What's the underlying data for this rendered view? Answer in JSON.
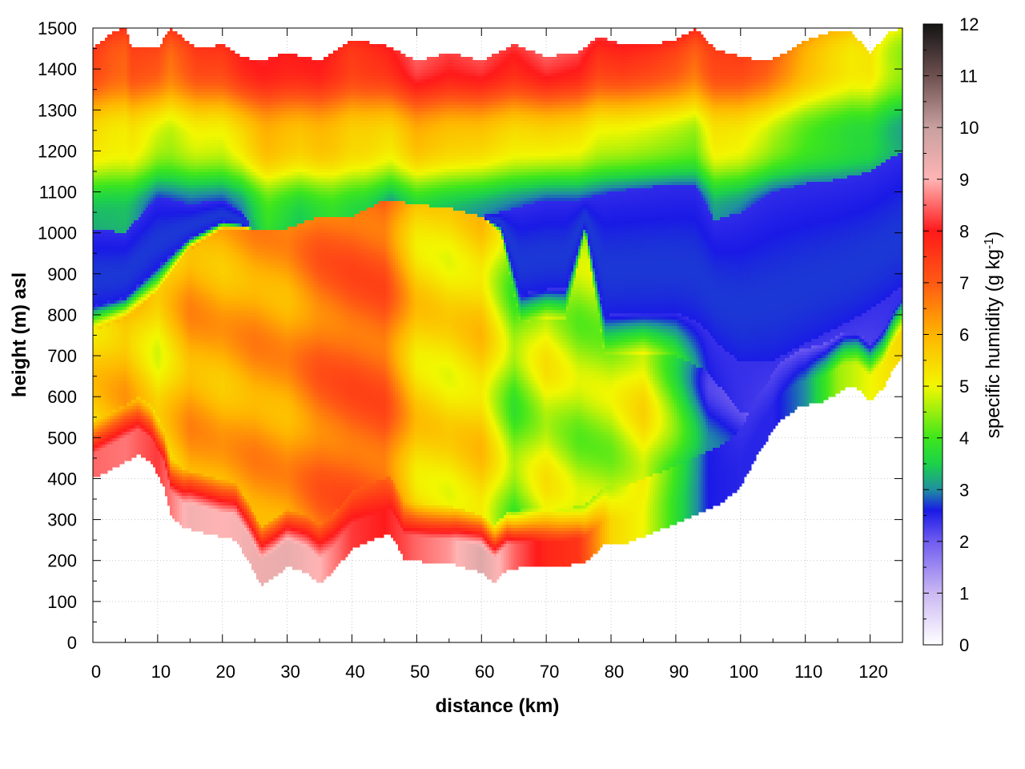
{
  "chart_data": {
    "type": "heatmap",
    "title": "",
    "xlabel": "distance (km)",
    "ylabel": "height (m) asl",
    "xlim": [
      0,
      125
    ],
    "ylim": [
      0,
      1500
    ],
    "xticks": [
      "0",
      "10",
      "20",
      "30",
      "40",
      "50",
      "60",
      "70",
      "80",
      "90",
      "100",
      "110",
      "120"
    ],
    "yticks": [
      "0",
      "100",
      "200",
      "300",
      "400",
      "500",
      "600",
      "700",
      "800",
      "900",
      "1000",
      "1100",
      "1200",
      "1300",
      "1400",
      "1500"
    ],
    "grid": true,
    "colorbar": {
      "label": "specific humidity (g kg",
      "label_superscript": "-1",
      "label_suffix": ")",
      "range": [
        0,
        12
      ],
      "ticks": [
        "0",
        "1",
        "2",
        "3",
        "4",
        "5",
        "6",
        "7",
        "8",
        "9",
        "10",
        "11",
        "12"
      ],
      "stops": [
        {
          "q": 0,
          "color": "#ffffff"
        },
        {
          "q": 1,
          "color": "#cbb8f2"
        },
        {
          "q": 2,
          "color": "#6f5cf0"
        },
        {
          "q": 2.6,
          "color": "#1a1ae6"
        },
        {
          "q": 3,
          "color": "#1f8fa0"
        },
        {
          "q": 3.5,
          "color": "#1cd24a"
        },
        {
          "q": 4,
          "color": "#3ee61c"
        },
        {
          "q": 5,
          "color": "#f2f700"
        },
        {
          "q": 6,
          "color": "#ffb400"
        },
        {
          "q": 7,
          "color": "#ff5a14"
        },
        {
          "q": 8,
          "color": "#ff1a1a"
        },
        {
          "q": 9,
          "color": "#ffb4b4"
        },
        {
          "q": 10,
          "color": "#c8a0a0"
        },
        {
          "q": 11,
          "color": "#6e5050"
        },
        {
          "q": 12,
          "color": "#141414"
        }
      ]
    },
    "ground_height_m": [
      {
        "x": 0,
        "h": 400
      },
      {
        "x": 5,
        "h": 440
      },
      {
        "x": 7,
        "h": 460
      },
      {
        "x": 9,
        "h": 440
      },
      {
        "x": 11,
        "h": 380
      },
      {
        "x": 12,
        "h": 310
      },
      {
        "x": 14,
        "h": 280
      },
      {
        "x": 18,
        "h": 265
      },
      {
        "x": 22,
        "h": 250
      },
      {
        "x": 24,
        "h": 200
      },
      {
        "x": 26,
        "h": 140
      },
      {
        "x": 28,
        "h": 160
      },
      {
        "x": 30,
        "h": 185
      },
      {
        "x": 33,
        "h": 170
      },
      {
        "x": 35,
        "h": 145
      },
      {
        "x": 37,
        "h": 170
      },
      {
        "x": 40,
        "h": 230
      },
      {
        "x": 43,
        "h": 250
      },
      {
        "x": 46,
        "h": 265
      },
      {
        "x": 48,
        "h": 205
      },
      {
        "x": 52,
        "h": 195
      },
      {
        "x": 56,
        "h": 190
      },
      {
        "x": 60,
        "h": 170
      },
      {
        "x": 62,
        "h": 145
      },
      {
        "x": 64,
        "h": 180
      },
      {
        "x": 68,
        "h": 185
      },
      {
        "x": 72,
        "h": 185
      },
      {
        "x": 76,
        "h": 195
      },
      {
        "x": 79,
        "h": 240
      },
      {
        "x": 82,
        "h": 240
      },
      {
        "x": 86,
        "h": 265
      },
      {
        "x": 90,
        "h": 290
      },
      {
        "x": 94,
        "h": 320
      },
      {
        "x": 97,
        "h": 340
      },
      {
        "x": 100,
        "h": 380
      },
      {
        "x": 103,
        "h": 470
      },
      {
        "x": 106,
        "h": 540
      },
      {
        "x": 109,
        "h": 575
      },
      {
        "x": 113,
        "h": 590
      },
      {
        "x": 116,
        "h": 620
      },
      {
        "x": 118,
        "h": 620
      },
      {
        "x": 120,
        "h": 590
      },
      {
        "x": 122,
        "h": 620
      },
      {
        "x": 124,
        "h": 680
      },
      {
        "x": 125,
        "h": 700
      }
    ],
    "top_height_m": [
      {
        "x": 0,
        "h": 1450
      },
      {
        "x": 3,
        "h": 1490
      },
      {
        "x": 5,
        "h": 1500
      },
      {
        "x": 6,
        "h": 1450
      },
      {
        "x": 10,
        "h": 1450
      },
      {
        "x": 12,
        "h": 1500
      },
      {
        "x": 16,
        "h": 1450
      },
      {
        "x": 20,
        "h": 1460
      },
      {
        "x": 23,
        "h": 1430
      },
      {
        "x": 26,
        "h": 1420
      },
      {
        "x": 30,
        "h": 1440
      },
      {
        "x": 35,
        "h": 1420
      },
      {
        "x": 40,
        "h": 1470
      },
      {
        "x": 45,
        "h": 1460
      },
      {
        "x": 50,
        "h": 1420
      },
      {
        "x": 55,
        "h": 1440
      },
      {
        "x": 60,
        "h": 1420
      },
      {
        "x": 65,
        "h": 1460
      },
      {
        "x": 70,
        "h": 1430
      },
      {
        "x": 75,
        "h": 1440
      },
      {
        "x": 78,
        "h": 1480
      },
      {
        "x": 82,
        "h": 1460
      },
      {
        "x": 86,
        "h": 1460
      },
      {
        "x": 90,
        "h": 1470
      },
      {
        "x": 93,
        "h": 1500
      },
      {
        "x": 96,
        "h": 1450
      },
      {
        "x": 100,
        "h": 1430
      },
      {
        "x": 104,
        "h": 1420
      },
      {
        "x": 107,
        "h": 1440
      },
      {
        "x": 110,
        "h": 1470
      },
      {
        "x": 114,
        "h": 1490
      },
      {
        "x": 117,
        "h": 1490
      },
      {
        "x": 120,
        "h": 1440
      },
      {
        "x": 123,
        "h": 1490
      },
      {
        "x": 125,
        "h": 1500
      }
    ],
    "inversion_height_m": [
      {
        "x": 0,
        "h": 1010
      },
      {
        "x": 5,
        "h": 1000
      },
      {
        "x": 10,
        "h": 1090
      },
      {
        "x": 15,
        "h": 1070
      },
      {
        "x": 20,
        "h": 1080
      },
      {
        "x": 23,
        "h": 1050
      },
      {
        "x": 27,
        "h": 950
      },
      {
        "x": 32,
        "h": 1000
      },
      {
        "x": 37,
        "h": 960
      },
      {
        "x": 42,
        "h": 990
      },
      {
        "x": 46,
        "h": 1050
      },
      {
        "x": 50,
        "h": 1000
      },
      {
        "x": 55,
        "h": 1020
      },
      {
        "x": 60,
        "h": 1040
      },
      {
        "x": 65,
        "h": 1060
      },
      {
        "x": 70,
        "h": 1080
      },
      {
        "x": 75,
        "h": 1080
      },
      {
        "x": 80,
        "h": 1100
      },
      {
        "x": 85,
        "h": 1110
      },
      {
        "x": 90,
        "h": 1120
      },
      {
        "x": 93,
        "h": 1120
      },
      {
        "x": 96,
        "h": 1030
      },
      {
        "x": 100,
        "h": 1050
      },
      {
        "x": 105,
        "h": 1100
      },
      {
        "x": 110,
        "h": 1120
      },
      {
        "x": 115,
        "h": 1130
      },
      {
        "x": 120,
        "h": 1150
      },
      {
        "x": 125,
        "h": 1200
      }
    ],
    "blue_layer_base_m": [
      {
        "x": 0,
        "h": 760
      },
      {
        "x": 5,
        "h": 790
      },
      {
        "x": 10,
        "h": 860
      },
      {
        "x": 15,
        "h": 960
      },
      {
        "x": 20,
        "h": 1010
      },
      {
        "x": 25,
        "h": 1010
      },
      {
        "x": 30,
        "h": 1010
      },
      {
        "x": 35,
        "h": 1040
      },
      {
        "x": 40,
        "h": 1040
      },
      {
        "x": 45,
        "h": 1080
      },
      {
        "x": 50,
        "h": 1070
      },
      {
        "x": 55,
        "h": 1060
      },
      {
        "x": 60,
        "h": 1040
      },
      {
        "x": 63,
        "h": 1000
      },
      {
        "x": 66,
        "h": 780
      },
      {
        "x": 70,
        "h": 790
      },
      {
        "x": 73,
        "h": 790
      },
      {
        "x": 76,
        "h": 1000
      },
      {
        "x": 79,
        "h": 700
      },
      {
        "x": 85,
        "h": 700
      },
      {
        "x": 90,
        "h": 700
      },
      {
        "x": 95,
        "h": 660
      },
      {
        "x": 100,
        "h": 560
      },
      {
        "x": 105,
        "h": 550
      },
      {
        "x": 110,
        "h": 600
      },
      {
        "x": 115,
        "h": 650
      },
      {
        "x": 120,
        "h": 700
      },
      {
        "x": 125,
        "h": 760
      }
    ],
    "mixed_layer_humidity_gkg": [
      {
        "x": 0,
        "q": 5.5
      },
      {
        "x": 5,
        "q": 6.0
      },
      {
        "x": 10,
        "q": 5.2
      },
      {
        "x": 15,
        "q": 6.2
      },
      {
        "x": 20,
        "q": 6.0
      },
      {
        "x": 25,
        "q": 6.3
      },
      {
        "x": 30,
        "q": 6.2
      },
      {
        "x": 35,
        "q": 6.8
      },
      {
        "x": 40,
        "q": 7.0
      },
      {
        "x": 45,
        "q": 7.0
      },
      {
        "x": 50,
        "q": 5.5
      },
      {
        "x": 55,
        "q": 5.3
      },
      {
        "x": 60,
        "q": 5.6
      },
      {
        "x": 65,
        "q": 4.2
      },
      {
        "x": 70,
        "q": 5.0
      },
      {
        "x": 75,
        "q": 4.5
      },
      {
        "x": 80,
        "q": 4.6
      },
      {
        "x": 85,
        "q": 5.2
      },
      {
        "x": 90,
        "q": 4.0
      },
      {
        "x": 95,
        "q": 2.6
      },
      {
        "x": 100,
        "q": 2.4
      },
      {
        "x": 105,
        "q": 2.2
      },
      {
        "x": 110,
        "q": 2.0
      },
      {
        "x": 115,
        "q": 2.0
      },
      {
        "x": 120,
        "q": 2.2
      },
      {
        "x": 125,
        "q": 2.5
      }
    ],
    "surface_layer_humidity_gkg": [
      {
        "x": 0,
        "q": 8.5
      },
      {
        "x": 5,
        "q": 8.6
      },
      {
        "x": 10,
        "q": 8.2
      },
      {
        "x": 15,
        "q": 9.2
      },
      {
        "x": 20,
        "q": 9.0
      },
      {
        "x": 25,
        "q": 9.3
      },
      {
        "x": 30,
        "q": 9.4
      },
      {
        "x": 35,
        "q": 9.0
      },
      {
        "x": 40,
        "q": 8.2
      },
      {
        "x": 45,
        "q": 8.0
      },
      {
        "x": 50,
        "q": 8.5
      },
      {
        "x": 55,
        "q": 8.8
      },
      {
        "x": 60,
        "q": 9.6
      },
      {
        "x": 65,
        "q": 8.5
      },
      {
        "x": 70,
        "q": 7.8
      },
      {
        "x": 75,
        "q": 7.6
      },
      {
        "x": 80,
        "q": 5.5
      },
      {
        "x": 85,
        "q": 5.0
      },
      {
        "x": 90,
        "q": 3.8
      },
      {
        "x": 95,
        "q": 2.6
      },
      {
        "x": 100,
        "q": 2.5
      },
      {
        "x": 105,
        "q": 2.5
      },
      {
        "x": 110,
        "q": 3.0
      },
      {
        "x": 115,
        "q": 4.5
      },
      {
        "x": 120,
        "q": 5.0
      },
      {
        "x": 125,
        "q": 5.5
      }
    ],
    "free_troposphere_humidity_gkg": [
      {
        "x": 0,
        "q": 7.8
      },
      {
        "x": 10,
        "q": 7.6
      },
      {
        "x": 20,
        "q": 8.0
      },
      {
        "x": 30,
        "q": 8.2
      },
      {
        "x": 40,
        "q": 8.0
      },
      {
        "x": 50,
        "q": 8.5
      },
      {
        "x": 60,
        "q": 8.4
      },
      {
        "x": 70,
        "q": 8.6
      },
      {
        "x": 80,
        "q": 8.4
      },
      {
        "x": 90,
        "q": 8.0
      },
      {
        "x": 100,
        "q": 7.6
      },
      {
        "x": 110,
        "q": 6.5
      },
      {
        "x": 120,
        "q": 5.5
      },
      {
        "x": 125,
        "q": 5.0
      }
    ]
  }
}
